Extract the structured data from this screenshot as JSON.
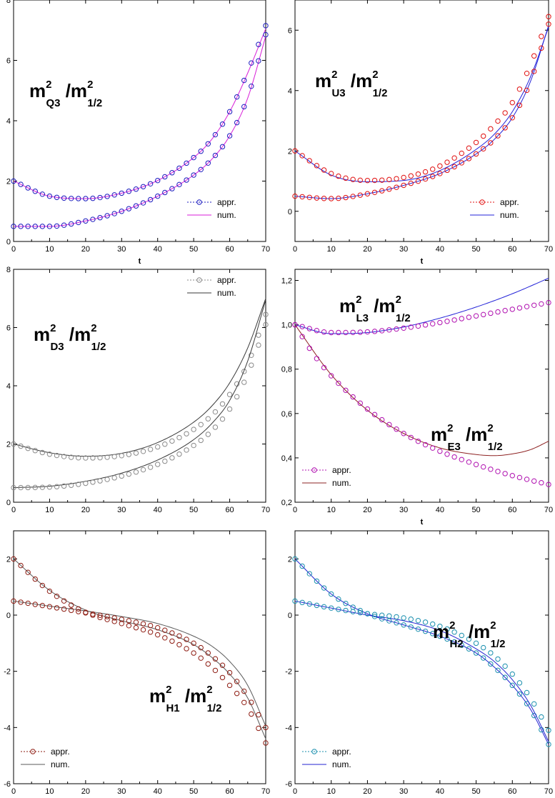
{
  "chart_data": [
    {
      "type": "line",
      "label": {
        "m": "m",
        "sup": "2",
        "sub": "Q3",
        "slash": "/m",
        "sup2": "2",
        "sub2": "1/2"
      },
      "xlabel": "t",
      "xlim": [
        0,
        70
      ],
      "ylim": [
        0,
        8
      ],
      "xticks": [
        0,
        10,
        20,
        30,
        40,
        50,
        60,
        70
      ],
      "yticks": [
        0,
        2,
        4,
        6,
        8
      ],
      "legend": {
        "position": "bottom-right",
        "appr": "appr.",
        "num": "num."
      },
      "colors": {
        "appr": "#1c1cbf",
        "num": "#d81ed8"
      },
      "series": [
        {
          "name": "Q3 upper",
          "appr": {
            "x": [
              0,
              10,
              20,
              30,
              40,
              50,
              55,
              60,
              65,
              70
            ],
            "y": [
              2.0,
              1.5,
              1.42,
              1.6,
              2.02,
              2.78,
              3.38,
              4.3,
              5.62,
              7.15
            ]
          },
          "num": {
            "x": [
              0,
              10,
              20,
              30,
              40,
              50,
              55,
              60,
              65,
              70
            ],
            "y": [
              2.0,
              1.5,
              1.42,
              1.6,
              2.02,
              2.78,
              3.38,
              4.3,
              5.58,
              7.05
            ]
          }
        },
        {
          "name": "Q3 lower",
          "appr": {
            "x": [
              0,
              10,
              20,
              30,
              40,
              50,
              55,
              60,
              65,
              70
            ],
            "y": [
              0.5,
              0.5,
              0.68,
              1.0,
              1.5,
              2.2,
              2.72,
              3.5,
              4.78,
              6.85
            ]
          },
          "num": {
            "x": [
              0,
              10,
              20,
              30,
              40,
              50,
              55,
              60,
              65,
              70
            ],
            "y": [
              0.5,
              0.5,
              0.68,
              1.0,
              1.5,
              2.2,
              2.72,
              3.5,
              4.75,
              6.8
            ]
          }
        }
      ]
    },
    {
      "type": "line",
      "label": {
        "m": "m",
        "sup": "2",
        "sub": "U3",
        "slash": "/m",
        "sup2": "2",
        "sub2": "1/2"
      },
      "xlabel": "t",
      "xlim": [
        0,
        70
      ],
      "ylim": [
        -1,
        7
      ],
      "xticks": [
        0,
        10,
        20,
        30,
        40,
        50,
        60,
        70
      ],
      "yticks": [
        0,
        2,
        4,
        6
      ],
      "legend": {
        "position": "bottom-right",
        "appr": "appr.",
        "num": "num."
      },
      "colors": {
        "appr": "#e01010",
        "num": "#2323d8"
      },
      "series": [
        {
          "name": "U3 upper",
          "appr": {
            "x": [
              0,
              10,
              20,
              30,
              40,
              50,
              55,
              60,
              65,
              70
            ],
            "y": [
              2.0,
              1.25,
              1.02,
              1.12,
              1.5,
              2.28,
              2.86,
              3.6,
              4.85,
              6.45
            ]
          },
          "num": {
            "x": [
              0,
              10,
              20,
              30,
              40,
              50,
              55,
              60,
              65,
              70
            ],
            "y": [
              2.0,
              1.2,
              0.98,
              1.02,
              1.35,
              2.05,
              2.55,
              3.3,
              4.45,
              6.1
            ]
          }
        },
        {
          "name": "U3 lower",
          "appr": {
            "x": [
              0,
              10,
              20,
              30,
              40,
              50,
              55,
              60,
              65,
              70
            ],
            "y": [
              0.5,
              0.42,
              0.58,
              0.86,
              1.25,
              1.9,
              2.38,
              3.1,
              4.3,
              6.2
            ]
          },
          "num": {
            "x": [
              0,
              10,
              20,
              30,
              40,
              50,
              55,
              60,
              65,
              70
            ],
            "y": [
              0.5,
              0.42,
              0.58,
              0.86,
              1.25,
              1.9,
              2.38,
              3.1,
              4.3,
              6.15
            ]
          }
        }
      ]
    },
    {
      "type": "line",
      "label": {
        "m": "m",
        "sup": "2",
        "sub": "D3",
        "slash": "/m",
        "sup2": "2",
        "sub2": "1/2"
      },
      "xlabel": "",
      "xlim": [
        0,
        70
      ],
      "ylim": [
        0,
        8
      ],
      "xticks": [
        0,
        10,
        20,
        30,
        40,
        50,
        60,
        70
      ],
      "yticks": [
        0,
        2,
        4,
        6,
        8
      ],
      "legend": {
        "position": "top-right",
        "appr": "appr.",
        "num": "num."
      },
      "colors": {
        "appr": "#8a8a8a",
        "num": "#3a3a3a"
      },
      "series": [
        {
          "name": "D3 upper",
          "appr": {
            "x": [
              0,
              10,
              20,
              30,
              40,
              50,
              55,
              60,
              65,
              70
            ],
            "y": [
              2.0,
              1.65,
              1.52,
              1.6,
              1.9,
              2.5,
              2.98,
              3.7,
              4.75,
              6.45
            ]
          },
          "num": {
            "x": [
              0,
              10,
              20,
              30,
              40,
              50,
              55,
              60,
              65,
              70
            ],
            "y": [
              2.0,
              1.7,
              1.58,
              1.68,
              2.05,
              2.75,
              3.3,
              4.1,
              5.3,
              7.0
            ]
          }
        },
        {
          "name": "D3 lower",
          "appr": {
            "x": [
              0,
              10,
              20,
              30,
              40,
              50,
              55,
              60,
              65,
              70
            ],
            "y": [
              0.5,
              0.52,
              0.65,
              0.9,
              1.3,
              1.95,
              2.45,
              3.2,
              4.4,
              6.1
            ]
          },
          "num": {
            "x": [
              0,
              10,
              20,
              30,
              40,
              50,
              55,
              60,
              65,
              70
            ],
            "y": [
              0.5,
              0.55,
              0.72,
              1.0,
              1.45,
              2.15,
              2.7,
              3.5,
              4.85,
              6.95
            ]
          }
        }
      ]
    },
    {
      "type": "line",
      "label": {
        "m": "m",
        "sup": "2",
        "sub": "L3",
        "slash": "/m",
        "sup2": "2",
        "sub2": "1/2"
      },
      "label2": {
        "m": "m",
        "sup": "2",
        "sub": "E3",
        "slash": "/m",
        "sup2": "2",
        "sub2": "1/2"
      },
      "xlabel": "t",
      "xlim": [
        0,
        70
      ],
      "ylim": [
        0.2,
        1.25
      ],
      "xticks": [
        0,
        10,
        20,
        30,
        40,
        50,
        60,
        70
      ],
      "yticks": [
        0.2,
        0.4,
        0.6,
        0.8,
        1.0,
        1.2
      ],
      "ytick_labels": [
        "0,2",
        "0,4",
        "0,6",
        "0,8",
        "1,0",
        "1,2"
      ],
      "legend": {
        "position": "bottom-left",
        "appr": "appr.",
        "num": "num."
      },
      "colors": {
        "appr": "#b010b0",
        "num": "#8e2323",
        "num2": "#2323d8"
      },
      "series": [
        {
          "name": "L3",
          "num_color": "num2",
          "appr": {
            "x": [
              0,
              10,
              20,
              30,
              40,
              50,
              60,
              70
            ],
            "y": [
              1.0,
              0.965,
              0.968,
              0.985,
              1.01,
              1.04,
              1.07,
              1.1
            ]
          },
          "num": {
            "x": [
              0,
              10,
              20,
              30,
              40,
              50,
              60,
              70
            ],
            "y": [
              1.0,
              0.96,
              0.965,
              0.99,
              1.03,
              1.08,
              1.14,
              1.21
            ]
          }
        },
        {
          "name": "E3",
          "num_color": "num",
          "appr": {
            "x": [
              0,
              5,
              10,
              20,
              30,
              40,
              50,
              60,
              70
            ],
            "y": [
              1.0,
              0.87,
              0.77,
              0.62,
              0.51,
              0.43,
              0.37,
              0.32,
              0.28
            ]
          },
          "num": {
            "x": [
              0,
              10,
              20,
              30,
              40,
              50,
              55,
              60,
              65,
              70
            ],
            "y": [
              1.0,
              0.775,
              0.615,
              0.51,
              0.445,
              0.415,
              0.41,
              0.418,
              0.437,
              0.475
            ]
          }
        }
      ]
    },
    {
      "type": "line",
      "label": {
        "m": "m",
        "sup": "2",
        "sub": "H1",
        "slash": "/m",
        "sup2": "2",
        "sub2": "1/2"
      },
      "xlabel": "t",
      "xlim": [
        0,
        70
      ],
      "ylim": [
        -6,
        3
      ],
      "xticks": [
        0,
        10,
        20,
        30,
        40,
        50,
        60,
        70
      ],
      "yticks": [
        -6,
        -4,
        -2,
        0,
        2
      ],
      "legend": {
        "position": "bottom-left",
        "appr": "appr.",
        "num": "num."
      },
      "colors": {
        "appr": "#8e1c12",
        "num": "#5a5a5a"
      },
      "series": [
        {
          "name": "H1 a",
          "appr": {
            "x": [
              0,
              10,
              20,
              30,
              40,
              50,
              55,
              60,
              65,
              70
            ],
            "y": [
              2.0,
              0.85,
              0.1,
              -0.3,
              -0.7,
              -1.35,
              -1.85,
              -2.5,
              -3.3,
              -4.55
            ]
          },
          "num": {
            "x": [
              0,
              10,
              20,
              30,
              40,
              50,
              55,
              60,
              65,
              70
            ],
            "y": [
              2.0,
              0.88,
              0.18,
              -0.2,
              -0.52,
              -1.05,
              -1.5,
              -2.1,
              -2.95,
              -4.4
            ]
          }
        },
        {
          "name": "H1 b",
          "appr": {
            "x": [
              0,
              10,
              20,
              30,
              40,
              50,
              55,
              60,
              65,
              70
            ],
            "y": [
              0.5,
              0.3,
              0.08,
              -0.15,
              -0.45,
              -1.0,
              -1.45,
              -2.05,
              -2.9,
              -4.0
            ]
          },
          "num": {
            "x": [
              0,
              10,
              20,
              30,
              40,
              50,
              55,
              60,
              65,
              70
            ],
            "y": [
              0.5,
              0.32,
              0.15,
              -0.05,
              -0.3,
              -0.75,
              -1.1,
              -1.65,
              -2.5,
              -3.95
            ]
          }
        }
      ]
    },
    {
      "type": "line",
      "label": {
        "m": "m",
        "sup": "2",
        "sub": "H2",
        "slash": "/m",
        "sup2": "2",
        "sub2": "1/2"
      },
      "xlabel": "t",
      "xlim": [
        0,
        70
      ],
      "ylim": [
        -6,
        3
      ],
      "xticks": [
        0,
        10,
        20,
        30,
        40,
        50,
        60,
        70
      ],
      "yticks": [
        -6,
        -4,
        -2,
        0,
        2
      ],
      "legend": {
        "position": "bottom-left",
        "appr": "appr.",
        "num": "num."
      },
      "colors": {
        "appr": "#1a8fae",
        "num": "#2323d0"
      },
      "series": [
        {
          "name": "H2 a",
          "appr": {
            "x": [
              0,
              10,
              20,
              30,
              40,
              50,
              55,
              60,
              65,
              70
            ],
            "y": [
              2.0,
              0.75,
              0.05,
              -0.35,
              -0.75,
              -1.35,
              -1.85,
              -2.5,
              -3.35,
              -4.6
            ]
          },
          "num": {
            "x": [
              0,
              10,
              20,
              30,
              40,
              50,
              55,
              60,
              65,
              70
            ],
            "y": [
              2.0,
              0.75,
              0.05,
              -0.35,
              -0.75,
              -1.35,
              -1.85,
              -2.5,
              -3.35,
              -4.6
            ]
          }
        },
        {
          "name": "H2 b",
          "appr": {
            "x": [
              0,
              10,
              20,
              30,
              40,
              50,
              55,
              60,
              65,
              70
            ],
            "y": [
              0.5,
              0.25,
              0.05,
              -0.1,
              -0.4,
              -1.0,
              -1.45,
              -2.1,
              -2.95,
              -4.1
            ]
          },
          "num": {
            "x": [
              0,
              10,
              20,
              30,
              40,
              50,
              55,
              60,
              65,
              70
            ],
            "y": [
              0.5,
              0.25,
              0.0,
              -0.2,
              -0.55,
              -1.2,
              -1.65,
              -2.3,
              -3.2,
              -4.5
            ]
          }
        }
      ]
    }
  ]
}
